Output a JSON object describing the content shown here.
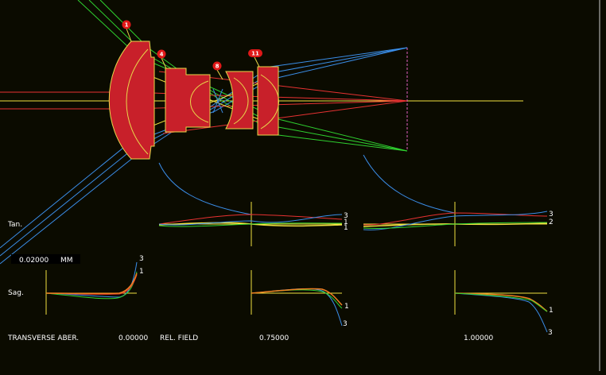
{
  "colors": {
    "background": "#0b0b00",
    "lens_fill": "#c8202a",
    "lens_outline": "#e8d84a",
    "ray_blue": "#3a8ee8",
    "ray_green": "#2fd02f",
    "ray_red": "#e83232",
    "ray_yellow": "#f0e040",
    "image_plane": "#e060c0",
    "axis": "#f0e040",
    "label_white": "#ffffff"
  },
  "surface_badges": [
    "1",
    "4",
    "8",
    "11"
  ],
  "labels": {
    "tan": "Tan.",
    "sag": "Sag.",
    "scale_value": "0.02000",
    "scale_unit": "MM",
    "title": "TRANSVERSE ABER.",
    "rel_field": "REL. FIELD"
  },
  "fields": [
    "0.00000",
    "0.75000",
    "1.00000"
  ],
  "curve_labels": {
    "tan_075": [
      "3",
      "1",
      "1"
    ],
    "tan_100": [
      "3",
      "2"
    ],
    "sag_000": [
      "3",
      "1"
    ],
    "sag_075": [
      "1",
      "3"
    ],
    "sag_100": [
      "1",
      "3"
    ]
  }
}
